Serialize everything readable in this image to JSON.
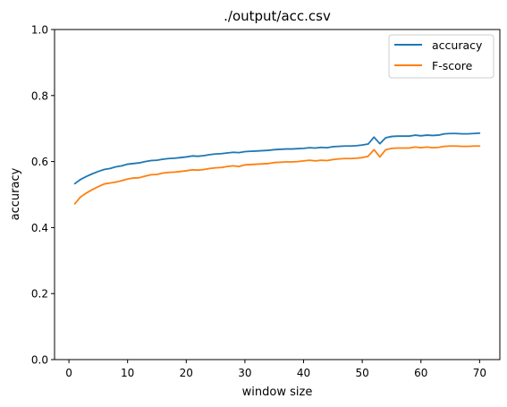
{
  "chart_data": {
    "type": "line",
    "title": "./output/acc.csv",
    "xlabel": "window size",
    "ylabel": "accuracy",
    "xlim": [
      -2.45,
      73.45
    ],
    "ylim": [
      0,
      1
    ],
    "xticks": [
      0,
      10,
      20,
      30,
      40,
      50,
      60,
      70
    ],
    "yticks": [
      0.0,
      0.2,
      0.4,
      0.6,
      0.8,
      1.0
    ],
    "xtick_labels": [
      "0",
      "10",
      "20",
      "30",
      "40",
      "50",
      "60",
      "70"
    ],
    "ytick_labels": [
      "0.0",
      "0.2",
      "0.4",
      "0.6",
      "0.8",
      "1.0"
    ],
    "grid": false,
    "legend_position": "top-right",
    "x": [
      1,
      2,
      3,
      4,
      5,
      6,
      7,
      8,
      9,
      10,
      11,
      12,
      13,
      14,
      15,
      16,
      17,
      18,
      19,
      20,
      21,
      22,
      23,
      24,
      25,
      26,
      27,
      28,
      29,
      30,
      31,
      32,
      33,
      34,
      35,
      36,
      37,
      38,
      39,
      40,
      41,
      42,
      43,
      44,
      45,
      46,
      47,
      48,
      49,
      50,
      51,
      52,
      53,
      54,
      55,
      56,
      57,
      58,
      59,
      60,
      61,
      62,
      63,
      64,
      65,
      66,
      67,
      68,
      69,
      70
    ],
    "series": [
      {
        "name": "accuracy",
        "color": "#1f77b4",
        "values": [
          0.533,
          0.546,
          0.555,
          0.563,
          0.57,
          0.576,
          0.579,
          0.584,
          0.587,
          0.592,
          0.594,
          0.596,
          0.6,
          0.603,
          0.604,
          0.607,
          0.609,
          0.61,
          0.612,
          0.614,
          0.617,
          0.616,
          0.618,
          0.621,
          0.623,
          0.624,
          0.626,
          0.628,
          0.627,
          0.63,
          0.631,
          0.632,
          0.633,
          0.634,
          0.636,
          0.637,
          0.638,
          0.638,
          0.639,
          0.64,
          0.642,
          0.641,
          0.643,
          0.642,
          0.645,
          0.646,
          0.647,
          0.647,
          0.648,
          0.65,
          0.653,
          0.674,
          0.654,
          0.672,
          0.676,
          0.677,
          0.677,
          0.677,
          0.68,
          0.678,
          0.68,
          0.679,
          0.68,
          0.684,
          0.685,
          0.685,
          0.684,
          0.684,
          0.685,
          0.686
        ]
      },
      {
        "name": "F-score",
        "color": "#ff7f0e",
        "values": [
          0.472,
          0.493,
          0.505,
          0.515,
          0.524,
          0.532,
          0.535,
          0.538,
          0.542,
          0.547,
          0.55,
          0.551,
          0.556,
          0.56,
          0.561,
          0.565,
          0.567,
          0.568,
          0.57,
          0.572,
          0.575,
          0.574,
          0.576,
          0.579,
          0.581,
          0.582,
          0.585,
          0.587,
          0.585,
          0.59,
          0.591,
          0.592,
          0.593,
          0.594,
          0.597,
          0.598,
          0.599,
          0.599,
          0.6,
          0.602,
          0.604,
          0.602,
          0.604,
          0.603,
          0.606,
          0.608,
          0.609,
          0.609,
          0.61,
          0.612,
          0.616,
          0.636,
          0.614,
          0.636,
          0.64,
          0.641,
          0.641,
          0.641,
          0.644,
          0.642,
          0.644,
          0.642,
          0.643,
          0.646,
          0.647,
          0.647,
          0.646,
          0.646,
          0.647,
          0.647
        ]
      }
    ]
  }
}
